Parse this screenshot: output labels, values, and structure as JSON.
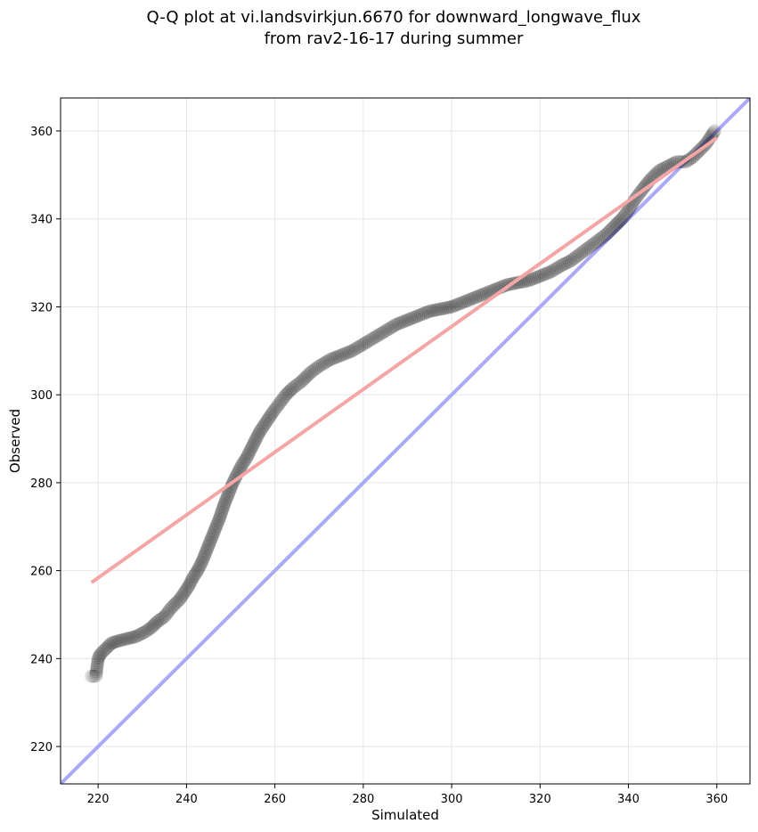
{
  "chart_data": {
    "type": "scatter",
    "title_line1": "Q-Q plot at vi.landsvirkjun.6670 for downward_longwave_flux",
    "title_line2": "from rav2-16-17 during summer",
    "xlabel": "Simulated",
    "ylabel": "Observed",
    "xlim": [
      211.5,
      367.5
    ],
    "ylim": [
      211.5,
      367.5
    ],
    "xticks": [
      220,
      240,
      260,
      280,
      300,
      320,
      340,
      360
    ],
    "yticks": [
      220,
      240,
      260,
      280,
      300,
      320,
      340,
      360
    ],
    "grid": true,
    "point_color": "#000000",
    "fit_line": {
      "color": "#f4a6a6",
      "x": [
        218.5,
        360.0
      ],
      "y": [
        257.3,
        358.4
      ]
    },
    "identity_line": {
      "color": "#a9a9f5"
    },
    "quantile_curve": {
      "x": [
        218.5,
        219.5,
        220.0,
        220.5,
        221.5,
        223.0,
        224.5,
        226.5,
        228.5,
        230.5,
        232.0,
        233.5,
        235.0,
        236.5,
        237.5,
        238.5,
        239.5,
        240.5,
        241.5,
        242.5,
        243.5,
        244.5,
        245.5,
        246.5,
        247.5,
        248.5,
        249.5,
        250.5,
        251.5,
        252.5,
        253.5,
        254.5,
        255.5,
        256.5,
        257.5,
        258.5,
        259.5,
        261.0,
        262.5,
        264.0,
        266.0,
        268.0,
        270.0,
        272.5,
        275.0,
        277.5,
        280.0,
        282.5,
        285.0,
        287.5,
        290.0,
        292.5,
        295.0,
        297.5,
        300.0,
        302.5,
        305.0,
        307.5,
        310.0,
        312.5,
        315.0,
        317.5,
        320.0,
        322.5,
        325.0,
        327.0,
        329.0,
        331.0,
        333.0,
        335.0,
        337.0,
        338.5,
        340.0,
        341.5,
        343.0,
        345.0,
        347.0,
        349.0,
        351.0,
        353.0,
        354.5,
        355.5,
        356.5,
        357.5,
        358.5,
        359.5
      ],
      "y": [
        236.0,
        236.0,
        240.0,
        241.0,
        242.0,
        243.5,
        244.0,
        244.5,
        245.0,
        246.0,
        247.0,
        248.5,
        249.5,
        251.5,
        252.5,
        253.5,
        255.0,
        256.5,
        258.5,
        260.0,
        262.0,
        264.5,
        267.0,
        269.5,
        272.0,
        275.0,
        277.5,
        280.0,
        282.0,
        284.0,
        285.5,
        287.5,
        289.5,
        291.5,
        293.0,
        294.5,
        296.0,
        298.0,
        300.0,
        301.5,
        303.0,
        305.0,
        306.5,
        308.0,
        309.0,
        310.0,
        311.5,
        313.0,
        314.5,
        316.0,
        317.0,
        318.0,
        319.0,
        319.5,
        320.0,
        321.0,
        322.0,
        323.0,
        324.0,
        325.0,
        325.5,
        326.0,
        327.0,
        328.0,
        329.5,
        330.5,
        332.0,
        333.5,
        335.0,
        336.5,
        338.5,
        340.0,
        342.0,
        344.5,
        346.5,
        349.0,
        351.0,
        352.0,
        353.0,
        353.0,
        354.0,
        355.0,
        356.0,
        357.0,
        358.5,
        360.0
      ]
    }
  }
}
